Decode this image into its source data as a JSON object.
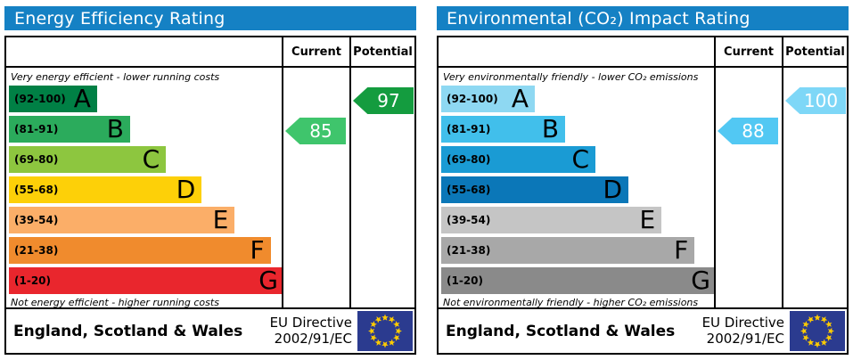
{
  "colors": {
    "header_blue": "#1581c4",
    "eu_flag_bg": "#2b3b8f",
    "eu_flag_star": "#ffcc00"
  },
  "panels": [
    {
      "title": "Energy Efficiency Rating",
      "header": {
        "current": "Current",
        "potential": "Potential"
      },
      "top_note": "Very energy efficient - lower running costs",
      "bottom_note": "Not energy efficient - higher running costs",
      "bands": [
        {
          "range": "(92-100)",
          "letter": "A",
          "color": "#008045",
          "width": "32%"
        },
        {
          "range": "(81-91)",
          "letter": "B",
          "color": "#2bab5c",
          "width": "44%"
        },
        {
          "range": "(69-80)",
          "letter": "C",
          "color": "#8dc63f",
          "width": "57%"
        },
        {
          "range": "(55-68)",
          "letter": "D",
          "color": "#fdd008",
          "width": "70%"
        },
        {
          "range": "(39-54)",
          "letter": "E",
          "color": "#fbae68",
          "width": "82%"
        },
        {
          "range": "(21-38)",
          "letter": "F",
          "color": "#f08b2d",
          "width": "95%"
        },
        {
          "range": "(1-20)",
          "letter": "G",
          "color": "#e9262d",
          "width": "100%"
        }
      ],
      "current": {
        "value": "85",
        "band_index": 1,
        "color": "#3fc56c"
      },
      "potential": {
        "value": "97",
        "band_index": 0,
        "color": "#149c3f"
      },
      "footer": {
        "region": "England, Scotland & Wales",
        "directive_line1": "EU Directive",
        "directive_line2": "2002/91/EC"
      }
    },
    {
      "title": "Environmental (CO₂) Impact Rating",
      "header": {
        "current": "Current",
        "potential": "Potential"
      },
      "top_note": "Very environmentally friendly - lower CO₂ emissions",
      "bottom_note": "Not environmentally friendly - higher CO₂ emissions",
      "bands": [
        {
          "range": "(92-100)",
          "letter": "A",
          "color": "#8ed8f2",
          "width": "34%"
        },
        {
          "range": "(81-91)",
          "letter": "B",
          "color": "#41bfeb",
          "width": "45%"
        },
        {
          "range": "(69-80)",
          "letter": "C",
          "color": "#1a9bd4",
          "width": "56%"
        },
        {
          "range": "(55-68)",
          "letter": "D",
          "color": "#0b77b8",
          "width": "68%"
        },
        {
          "range": "(39-54)",
          "letter": "E",
          "color": "#c5c5c5",
          "width": "80%"
        },
        {
          "range": "(21-38)",
          "letter": "F",
          "color": "#a8a8a8",
          "width": "92%"
        },
        {
          "range": "(1-20)",
          "letter": "G",
          "color": "#8a8a8a",
          "width": "100%"
        }
      ],
      "current": {
        "value": "88",
        "band_index": 1,
        "color": "#52c8f3"
      },
      "potential": {
        "value": "100",
        "band_index": 0,
        "color": "#7ed7f7"
      },
      "footer": {
        "region": "England, Scotland & Wales",
        "directive_line1": "EU Directive",
        "directive_line2": "2002/91/EC"
      }
    }
  ],
  "chart_data": [
    {
      "type": "bar",
      "title": "Energy Efficiency Rating",
      "orientation": "horizontal",
      "categories": [
        "A (92-100)",
        "B (81-91)",
        "C (69-80)",
        "D (55-68)",
        "E (39-54)",
        "F (21-38)",
        "G (1-20)"
      ],
      "values": [
        32,
        44,
        57,
        70,
        82,
        95,
        100
      ],
      "value_unit": "relative bar length %",
      "annotations": {
        "current_rating": 85,
        "current_band": "B",
        "potential_rating": 97,
        "potential_band": "A"
      },
      "top_label": "Very energy efficient - lower running costs",
      "bottom_label": "Not energy efficient - higher running costs",
      "footer": "England, Scotland & Wales — EU Directive 2002/91/EC"
    },
    {
      "type": "bar",
      "title": "Environmental (CO₂) Impact Rating",
      "orientation": "horizontal",
      "categories": [
        "A (92-100)",
        "B (81-91)",
        "C (69-80)",
        "D (55-68)",
        "E (39-54)",
        "F (21-38)",
        "G (1-20)"
      ],
      "values": [
        34,
        45,
        56,
        68,
        80,
        92,
        100
      ],
      "value_unit": "relative bar length %",
      "annotations": {
        "current_rating": 88,
        "current_band": "B",
        "potential_rating": 100,
        "potential_band": "A"
      },
      "top_label": "Very environmentally friendly - lower CO₂ emissions",
      "bottom_label": "Not environmentally friendly - higher CO₂ emissions",
      "footer": "England, Scotland & Wales — EU Directive 2002/91/EC"
    }
  ]
}
